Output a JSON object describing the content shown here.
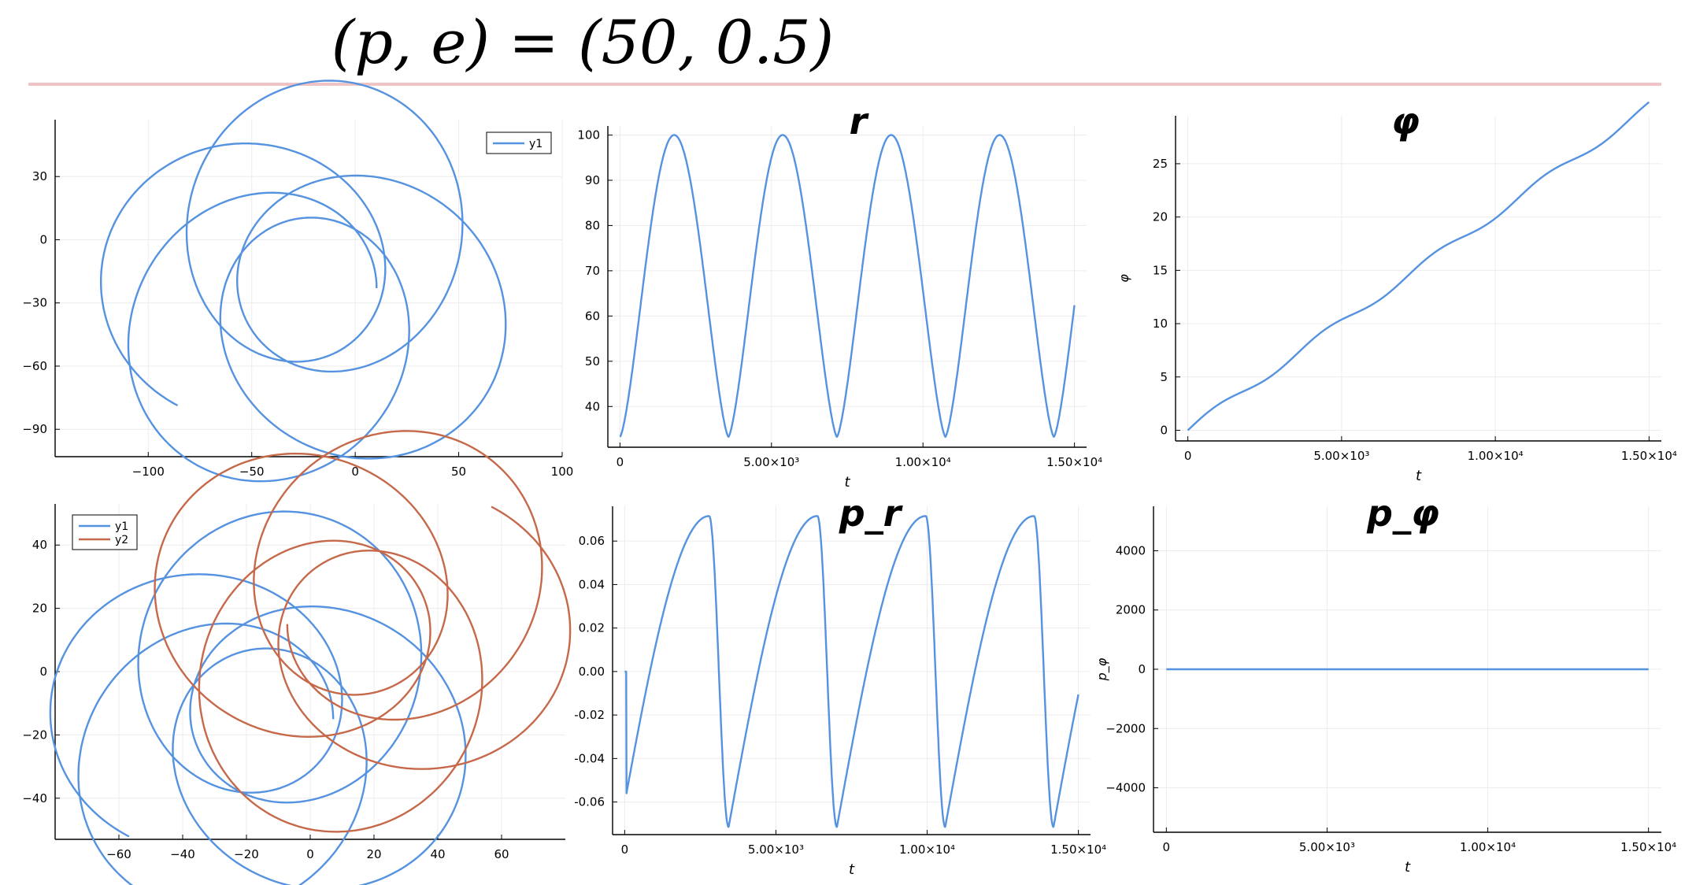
{
  "figure": {
    "title": "(p, e) = (50, 0.5)",
    "rule_color": "#f0c4c4"
  },
  "colors": {
    "series1": "#5592e0",
    "series2": "#c6694a",
    "axis": "#000000",
    "grid": "#ececec"
  },
  "chart_data": [
    {
      "id": "orbit",
      "type": "line",
      "title": "",
      "xlabel": "",
      "ylabel": "",
      "xlim": [
        -145,
        100
      ],
      "ylim": [
        -103,
        57
      ],
      "xticks": [
        -100,
        -50,
        0,
        50,
        100
      ],
      "xtick_labels": [
        "−100",
        "−50",
        "0",
        "50",
        "100"
      ],
      "yticks": [
        30,
        0,
        -30,
        -60,
        -90
      ],
      "ytick_labels": [
        "30",
        "0",
        "−30",
        "−60",
        "−90"
      ],
      "grid": true,
      "legend": "top-right",
      "series": [
        {
          "name": "y1",
          "color": "#5592e0",
          "path": {
            "kind": "orbit",
            "cx": -23,
            "cy": -23,
            "p": 50,
            "e": 0.5,
            "phi_max": 29.0,
            "swap": true
          }
        }
      ]
    },
    {
      "id": "r",
      "type": "line",
      "title": "r",
      "xlabel": "t",
      "ylabel": "",
      "xlim": [
        -400,
        15400
      ],
      "ylim": [
        31,
        102
      ],
      "xticks": [
        0,
        5000,
        10000,
        15000
      ],
      "xtick_labels": [
        "0",
        "5.00×10³",
        "1.00×10⁴",
        "1.50×10⁴"
      ],
      "yticks": [
        40,
        50,
        60,
        70,
        80,
        90,
        100
      ],
      "ytick_labels": [
        "40",
        "50",
        "60",
        "70",
        "80",
        "90",
        "100"
      ],
      "grid": true,
      "series": [
        {
          "name": "",
          "color": "#5592e0",
          "path": {
            "kind": "r_t",
            "period": 3580,
            "rmin": 33.3,
            "rmax": 100,
            "t0": 0,
            "t1": 15000,
            "rend": 68
          }
        }
      ]
    },
    {
      "id": "phi",
      "type": "line",
      "title": "φ",
      "xlabel": "t",
      "ylabel": "φ",
      "xlim": [
        -400,
        15400
      ],
      "ylim": [
        -1,
        29.5
      ],
      "xticks": [
        0,
        5000,
        10000,
        15000
      ],
      "xtick_labels": [
        "0",
        "5.00×10³",
        "1.00×10⁴",
        "1.50×10⁴"
      ],
      "yticks": [
        0,
        5,
        10,
        15,
        20,
        25
      ],
      "ytick_labels": [
        "0",
        "5",
        "10",
        "15",
        "20",
        "25"
      ],
      "grid": true,
      "series": [
        {
          "name": "",
          "color": "#5592e0",
          "path": {
            "kind": "phi_t",
            "period": 3580,
            "step": 7.255,
            "t0": 0,
            "t1": 15000
          }
        }
      ]
    },
    {
      "id": "orbit2",
      "type": "line",
      "title": "",
      "xlabel": "",
      "ylabel": "",
      "xlim": [
        -80,
        80
      ],
      "ylim": [
        -53,
        53
      ],
      "xticks": [
        -60,
        -40,
        -20,
        0,
        20,
        40,
        60
      ],
      "xtick_labels": [
        "−60",
        "−40",
        "−20",
        "0",
        "20",
        "40",
        "60"
      ],
      "yticks": [
        40,
        20,
        0,
        -20,
        -40
      ],
      "ytick_labels": [
        "40",
        "20",
        "0",
        "−20",
        "−40"
      ],
      "grid": true,
      "legend": "top-left",
      "series": [
        {
          "name": "y1",
          "color": "#5592e0",
          "path": {
            "kind": "orbit",
            "cx": -15,
            "cy": -15,
            "p": 33.3,
            "e": 0.5,
            "phi_max": 29.0,
            "swap": true
          }
        },
        {
          "name": "y2",
          "color": "#c6694a",
          "path": {
            "kind": "orbit",
            "cx": 15,
            "cy": 15,
            "p": 33.3,
            "e": 0.5,
            "phi_max": 29.0,
            "swap": true,
            "neg": true
          }
        }
      ]
    },
    {
      "id": "pr",
      "type": "line",
      "title": "p_r",
      "xlabel": "t",
      "ylabel": "",
      "xlim": [
        -400,
        15400
      ],
      "ylim": [
        -0.075,
        0.076
      ],
      "xticks": [
        0,
        5000,
        10000,
        15000
      ],
      "xtick_labels": [
        "0",
        "5.00×10³",
        "1.00×10⁴",
        "1.50×10⁴"
      ],
      "yticks": [
        0.06,
        0.04,
        0.02,
        0,
        -0.02,
        -0.04,
        -0.06
      ],
      "ytick_labels": [
        "0.06",
        "0.04",
        "0.02",
        "0.00",
        "-0.02",
        "-0.04",
        "-0.06"
      ],
      "grid": true,
      "series": [
        {
          "name": "",
          "color": "#5592e0",
          "path": {
            "kind": "pr_t",
            "period": 3580,
            "amp": 0.0715,
            "t0": 0,
            "t1": 15000
          }
        }
      ]
    },
    {
      "id": "pphi",
      "type": "line",
      "title": "p_φ",
      "xlabel": "t",
      "ylabel": "p_φ",
      "xlim": [
        -400,
        15400
      ],
      "ylim": [
        -5500,
        5500
      ],
      "xticks": [
        0,
        5000,
        10000,
        15000
      ],
      "xtick_labels": [
        "0",
        "5.00×10³",
        "1.00×10⁴",
        "1.50×10⁴"
      ],
      "yticks": [
        4000,
        2000,
        0,
        -2000,
        -4000
      ],
      "ytick_labels": [
        "4000",
        "2000",
        "0",
        "−2000",
        "−4000"
      ],
      "grid": true,
      "series": [
        {
          "name": "",
          "color": "#5592e0",
          "x": [
            0,
            15000
          ],
          "values": [
            0,
            0
          ]
        }
      ]
    }
  ]
}
